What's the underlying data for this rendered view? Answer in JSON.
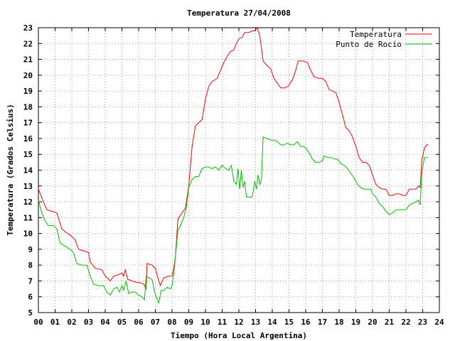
{
  "chart_data": {
    "type": "line",
    "title": "Temperatura 27/04/2008",
    "xlabel": "Tiempo (Hora Local Argentina)",
    "ylabel": "Temperatura (Grados Celsius)",
    "xlim": [
      0,
      24
    ],
    "ylim": [
      5,
      23
    ],
    "x_ticks": [
      "00",
      "01",
      "02",
      "03",
      "04",
      "05",
      "06",
      "07",
      "08",
      "09",
      "10",
      "11",
      "12",
      "13",
      "14",
      "15",
      "16",
      "17",
      "18",
      "19",
      "20",
      "21",
      "22",
      "23",
      "24"
    ],
    "y_ticks": [
      5,
      6,
      7,
      8,
      9,
      10,
      11,
      12,
      13,
      14,
      15,
      16,
      17,
      18,
      19,
      20,
      21,
      22,
      23
    ],
    "grid": true,
    "legend_position": "top-right",
    "series": [
      {
        "name": "Temperatura",
        "color": "#ff0000",
        "points": [
          [
            0.0,
            12.8
          ],
          [
            0.3,
            12.0
          ],
          [
            0.5,
            11.5
          ],
          [
            0.8,
            11.4
          ],
          [
            1.1,
            11.3
          ],
          [
            1.4,
            10.3
          ],
          [
            1.6,
            10.1
          ],
          [
            1.9,
            9.9
          ],
          [
            2.2,
            9.6
          ],
          [
            2.4,
            9.0
          ],
          [
            2.7,
            8.9
          ],
          [
            3.0,
            8.8
          ],
          [
            3.1,
            8.2
          ],
          [
            3.4,
            7.8
          ],
          [
            3.8,
            7.7
          ],
          [
            4.0,
            7.3
          ],
          [
            4.3,
            7.0
          ],
          [
            4.5,
            7.3
          ],
          [
            4.8,
            7.4
          ],
          [
            5.0,
            7.5
          ],
          [
            5.1,
            7.3
          ],
          [
            5.2,
            7.7
          ],
          [
            5.35,
            7.1
          ],
          [
            5.6,
            7.0
          ],
          [
            5.9,
            6.9
          ],
          [
            6.1,
            6.9
          ],
          [
            6.3,
            6.8
          ],
          [
            6.45,
            6.5
          ],
          [
            6.5,
            8.1
          ],
          [
            6.8,
            8.0
          ],
          [
            7.0,
            7.8
          ],
          [
            7.15,
            7.2
          ],
          [
            7.3,
            6.7
          ],
          [
            7.5,
            7.2
          ],
          [
            7.8,
            7.3
          ],
          [
            8.0,
            7.3
          ],
          [
            8.1,
            7.8
          ],
          [
            8.2,
            8.5
          ],
          [
            8.35,
            10.9
          ],
          [
            8.6,
            11.3
          ],
          [
            8.8,
            11.6
          ],
          [
            9.0,
            13.0
          ],
          [
            9.2,
            15.5
          ],
          [
            9.4,
            16.8
          ],
          [
            9.6,
            17.0
          ],
          [
            9.8,
            17.2
          ],
          [
            10.0,
            18.5
          ],
          [
            10.2,
            19.3
          ],
          [
            10.4,
            19.6
          ],
          [
            10.7,
            19.8
          ],
          [
            10.9,
            20.3
          ],
          [
            11.1,
            20.8
          ],
          [
            11.3,
            21.2
          ],
          [
            11.5,
            21.5
          ],
          [
            11.7,
            21.6
          ],
          [
            11.85,
            22.0
          ],
          [
            12.0,
            22.3
          ],
          [
            12.2,
            22.4
          ],
          [
            12.35,
            22.7
          ],
          [
            12.6,
            22.7
          ],
          [
            12.8,
            22.8
          ],
          [
            12.95,
            22.8
          ],
          [
            13.1,
            23.0
          ],
          [
            13.25,
            22.5
          ],
          [
            13.45,
            20.9
          ],
          [
            13.7,
            20.6
          ],
          [
            13.9,
            20.4
          ],
          [
            14.1,
            19.8
          ],
          [
            14.3,
            19.5
          ],
          [
            14.5,
            19.2
          ],
          [
            14.75,
            19.2
          ],
          [
            14.95,
            19.3
          ],
          [
            15.2,
            19.7
          ],
          [
            15.4,
            20.3
          ],
          [
            15.55,
            20.9
          ],
          [
            15.8,
            20.9
          ],
          [
            16.1,
            20.8
          ],
          [
            16.3,
            20.3
          ],
          [
            16.5,
            19.9
          ],
          [
            16.8,
            19.8
          ],
          [
            17.0,
            19.8
          ],
          [
            17.2,
            19.6
          ],
          [
            17.4,
            19.1
          ],
          [
            17.6,
            19.0
          ],
          [
            17.8,
            18.9
          ],
          [
            18.0,
            18.3
          ],
          [
            18.2,
            17.5
          ],
          [
            18.4,
            16.7
          ],
          [
            18.6,
            16.5
          ],
          [
            18.8,
            16.1
          ],
          [
            19.0,
            15.5
          ],
          [
            19.2,
            14.8
          ],
          [
            19.4,
            14.5
          ],
          [
            19.6,
            14.5
          ],
          [
            19.8,
            14.3
          ],
          [
            20.0,
            13.7
          ],
          [
            20.2,
            13.1
          ],
          [
            20.4,
            12.9
          ],
          [
            20.6,
            12.8
          ],
          [
            20.8,
            12.8
          ],
          [
            21.0,
            12.4
          ],
          [
            21.2,
            12.4
          ],
          [
            21.4,
            12.5
          ],
          [
            21.6,
            12.5
          ],
          [
            21.8,
            12.4
          ],
          [
            22.0,
            12.4
          ],
          [
            22.2,
            12.8
          ],
          [
            22.4,
            12.8
          ],
          [
            22.6,
            12.8
          ],
          [
            22.75,
            13.0
          ],
          [
            22.85,
            12.9
          ],
          [
            22.95,
            14.6
          ],
          [
            23.1,
            15.4
          ],
          [
            23.25,
            15.6
          ],
          [
            23.35,
            15.6
          ]
        ]
      },
      {
        "name": "Punto de Rocío",
        "color": "#00c000",
        "points": [
          [
            0.0,
            12.1
          ],
          [
            0.2,
            11.3
          ],
          [
            0.4,
            10.8
          ],
          [
            0.6,
            10.5
          ],
          [
            0.9,
            10.5
          ],
          [
            1.1,
            10.3
          ],
          [
            1.3,
            9.4
          ],
          [
            1.6,
            9.2
          ],
          [
            1.9,
            9.0
          ],
          [
            2.1,
            8.8
          ],
          [
            2.3,
            8.1
          ],
          [
            2.6,
            8.0
          ],
          [
            2.9,
            8.0
          ],
          [
            3.1,
            7.3
          ],
          [
            3.3,
            6.8
          ],
          [
            3.6,
            6.7
          ],
          [
            3.9,
            6.7
          ],
          [
            4.1,
            6.3
          ],
          [
            4.3,
            6.1
          ],
          [
            4.5,
            6.5
          ],
          [
            4.7,
            6.6
          ],
          [
            4.85,
            6.3
          ],
          [
            5.0,
            6.7
          ],
          [
            5.1,
            6.4
          ],
          [
            5.25,
            7.0
          ],
          [
            5.4,
            6.2
          ],
          [
            5.6,
            6.3
          ],
          [
            5.8,
            6.3
          ],
          [
            6.0,
            6.1
          ],
          [
            6.2,
            6.0
          ],
          [
            6.35,
            5.8
          ],
          [
            6.45,
            7.3
          ],
          [
            6.6,
            7.2
          ],
          [
            6.8,
            7.1
          ],
          [
            6.95,
            6.3
          ],
          [
            7.1,
            5.9
          ],
          [
            7.2,
            5.6
          ],
          [
            7.35,
            6.4
          ],
          [
            7.5,
            6.4
          ],
          [
            7.7,
            6.6
          ],
          [
            7.9,
            6.5
          ],
          [
            8.0,
            6.7
          ],
          [
            8.1,
            7.4
          ],
          [
            8.2,
            8.5
          ],
          [
            8.35,
            10.2
          ],
          [
            8.5,
            10.5
          ],
          [
            8.7,
            11.0
          ],
          [
            8.85,
            11.6
          ],
          [
            9.0,
            12.9
          ],
          [
            9.2,
            13.4
          ],
          [
            9.4,
            13.6
          ],
          [
            9.6,
            13.6
          ],
          [
            9.8,
            14.1
          ],
          [
            10.0,
            14.2
          ],
          [
            10.2,
            14.2
          ],
          [
            10.4,
            14.1
          ],
          [
            10.6,
            14.2
          ],
          [
            10.8,
            14.0
          ],
          [
            11.0,
            14.3
          ],
          [
            11.2,
            14.1
          ],
          [
            11.4,
            14.0
          ],
          [
            11.55,
            14.3
          ],
          [
            11.7,
            13.3
          ],
          [
            11.85,
            13.1
          ],
          [
            11.95,
            14.1
          ],
          [
            12.05,
            12.8
          ],
          [
            12.15,
            14.0
          ],
          [
            12.25,
            12.9
          ],
          [
            12.35,
            13.3
          ],
          [
            12.45,
            12.3
          ],
          [
            12.6,
            12.3
          ],
          [
            12.8,
            12.3
          ],
          [
            12.95,
            13.3
          ],
          [
            13.05,
            12.8
          ],
          [
            13.15,
            13.7
          ],
          [
            13.25,
            13.1
          ],
          [
            13.35,
            13.4
          ],
          [
            13.45,
            16.1
          ],
          [
            13.7,
            16.0
          ],
          [
            13.9,
            15.9
          ],
          [
            14.1,
            15.9
          ],
          [
            14.3,
            15.8
          ],
          [
            14.5,
            15.6
          ],
          [
            14.7,
            15.6
          ],
          [
            14.9,
            15.7
          ],
          [
            15.1,
            15.6
          ],
          [
            15.3,
            15.6
          ],
          [
            15.5,
            15.8
          ],
          [
            15.7,
            15.5
          ],
          [
            15.9,
            15.5
          ],
          [
            16.0,
            15.4
          ],
          [
            16.2,
            15.1
          ],
          [
            16.4,
            14.7
          ],
          [
            16.6,
            14.5
          ],
          [
            16.8,
            14.5
          ],
          [
            17.0,
            14.6
          ],
          [
            17.1,
            14.9
          ],
          [
            17.3,
            14.8
          ],
          [
            17.5,
            14.8
          ],
          [
            17.7,
            14.7
          ],
          [
            17.9,
            14.7
          ],
          [
            18.1,
            14.4
          ],
          [
            18.3,
            14.3
          ],
          [
            18.5,
            14.1
          ],
          [
            18.7,
            13.8
          ],
          [
            18.9,
            13.5
          ],
          [
            19.1,
            13.1
          ],
          [
            19.3,
            12.9
          ],
          [
            19.5,
            12.8
          ],
          [
            19.7,
            12.8
          ],
          [
            19.9,
            12.8
          ],
          [
            20.0,
            12.5
          ],
          [
            20.2,
            12.3
          ],
          [
            20.4,
            11.9
          ],
          [
            20.6,
            11.7
          ],
          [
            20.8,
            11.4
          ],
          [
            21.0,
            11.2
          ],
          [
            21.2,
            11.3
          ],
          [
            21.4,
            11.5
          ],
          [
            21.6,
            11.5
          ],
          [
            21.8,
            11.5
          ],
          [
            22.0,
            11.5
          ],
          [
            22.2,
            11.8
          ],
          [
            22.4,
            11.9
          ],
          [
            22.6,
            12.0
          ],
          [
            22.75,
            12.1
          ],
          [
            22.85,
            11.8
          ],
          [
            22.95,
            13.8
          ],
          [
            23.1,
            14.8
          ],
          [
            23.3,
            14.8
          ]
        ]
      }
    ]
  }
}
